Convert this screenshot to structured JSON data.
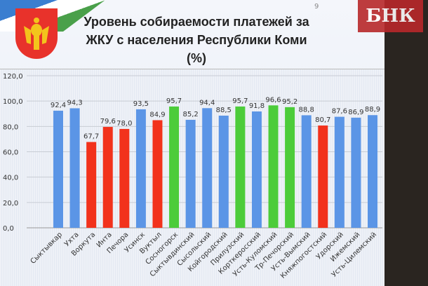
{
  "header": {
    "title_line1": "Уровень собираемости платежей за",
    "title_line2": "ЖКУ с населения Республики Коми (%)",
    "page_number": "9",
    "watermark": "БНК"
  },
  "colors": {
    "blue": "#5b95e6",
    "red": "#f2321c",
    "green": "#4ccc3a"
  },
  "chart_data": {
    "type": "bar",
    "title": "Уровень собираемости платежей за ЖКУ с населения Республики Коми (%)",
    "ylim": [
      0,
      120
    ],
    "yticks": [
      "0,0",
      "20,0",
      "40,0",
      "60,0",
      "80,0",
      "100,0",
      "120,0"
    ],
    "grid": true,
    "categories": [
      "Сыктывкар",
      "Ухта",
      "Воркута",
      "Инта",
      "Печора",
      "Усинск",
      "Вуктыл",
      "Сосногорск",
      "Сыктывдинский",
      "Сысольский",
      "Койгородский",
      "Прилузский",
      "Корткеросский",
      "Усть-Куломский",
      "Тр-Печорский",
      "Усть-Вымский",
      "Княжпогостский",
      "Удорский",
      "Ижемский",
      "Усть-Цилемский"
    ],
    "values": [
      92.4,
      94.3,
      67.7,
      79.6,
      78.0,
      93.5,
      84.9,
      95.7,
      85.2,
      94.4,
      88.5,
      95.7,
      91.8,
      96.6,
      95.2,
      88.8,
      80.7,
      87.6,
      86.9,
      88.9
    ],
    "labels": [
      "92,4",
      "94,3",
      "67,7",
      "79,6",
      "78,0",
      "93,5",
      "84,9",
      "95,7",
      "85,2",
      "94,4",
      "88,5",
      "95,7",
      "91,8",
      "96,6",
      "95,2",
      "88,8",
      "80,7",
      "87,6",
      "86,9",
      "88,9"
    ],
    "bar_colors": [
      "blue",
      "blue",
      "red",
      "red",
      "red",
      "blue",
      "red",
      "green",
      "blue",
      "blue",
      "blue",
      "green",
      "blue",
      "green",
      "green",
      "blue",
      "red",
      "blue",
      "blue",
      "blue"
    ]
  }
}
